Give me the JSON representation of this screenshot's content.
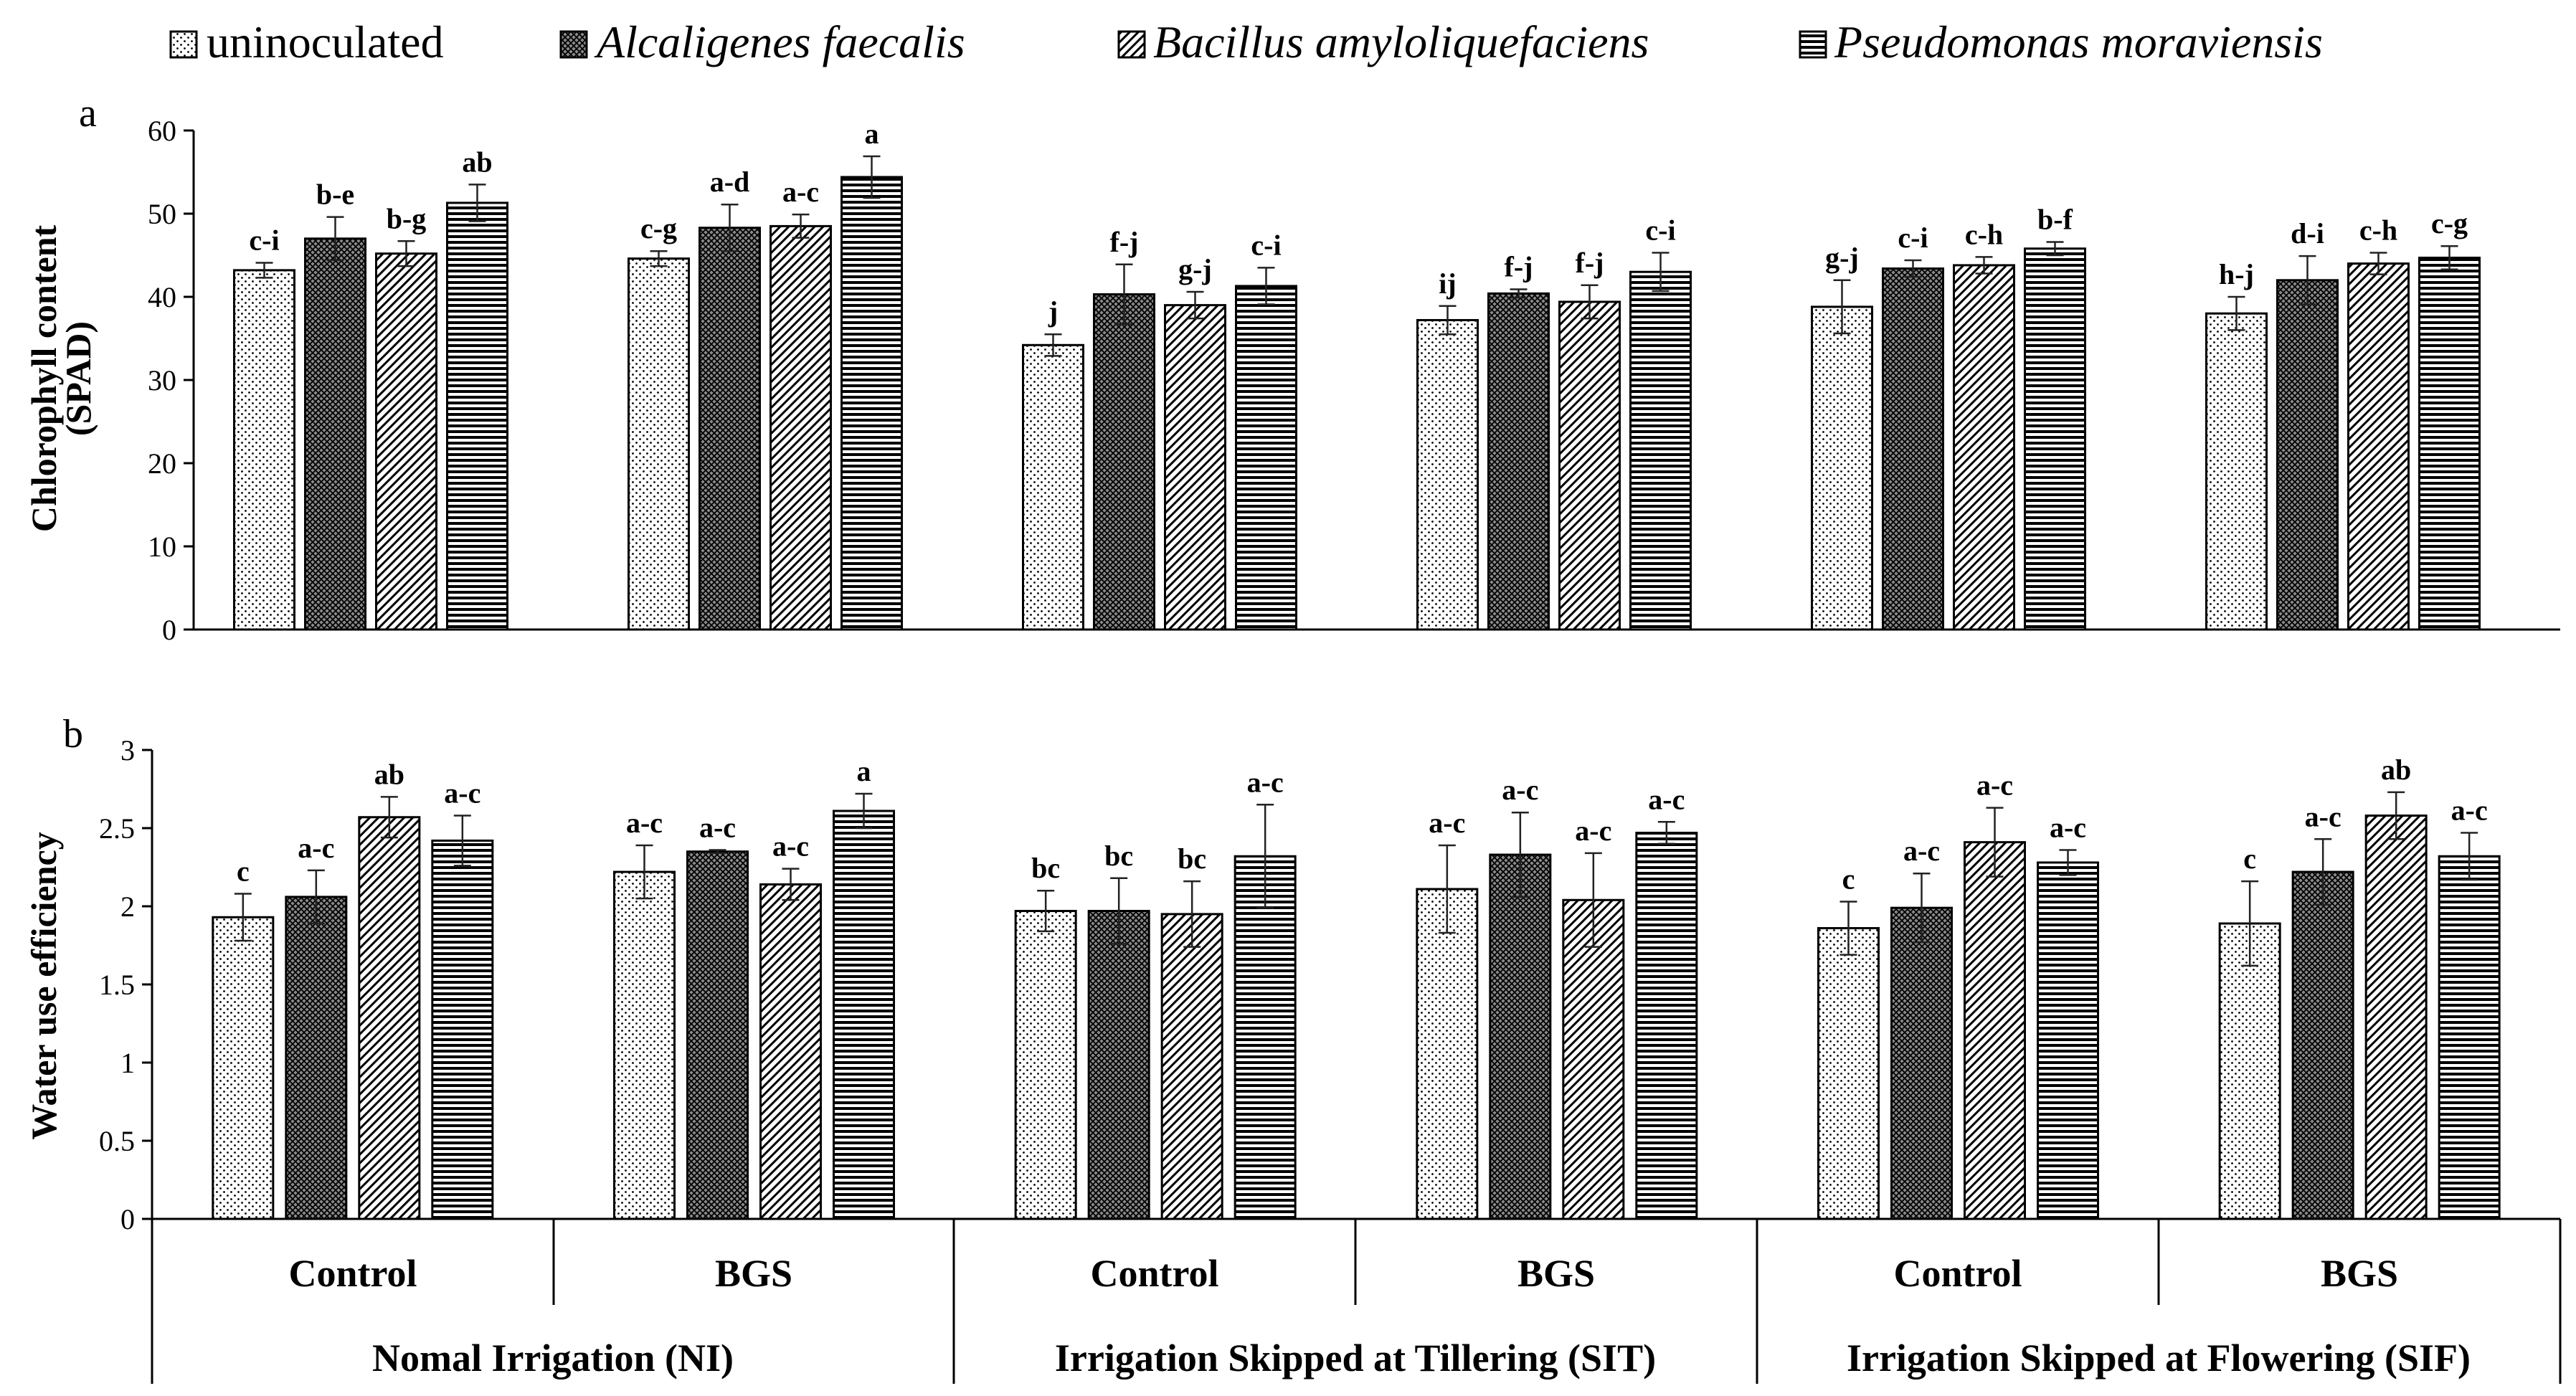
{
  "legend": [
    {
      "label": "uninoculated",
      "italic": false,
      "pattern": "dots"
    },
    {
      "label": "Alcaligenes faecalis",
      "italic": true,
      "pattern": "crosshatch"
    },
    {
      "label": "Bacillus amyloliquefaciens",
      "italic": true,
      "pattern": "diagonal"
    },
    {
      "label": "Pseudomonas moraviensis",
      "italic": true,
      "pattern": "horizontal"
    }
  ],
  "groups": {
    "sub": [
      "Control",
      "BGS",
      "Control",
      "BGS",
      "Control",
      "BGS"
    ],
    "main": [
      "Nomal Irrigation (NI)",
      "Irrigation Skipped at Tillering (SIT)",
      "Irrigation Skipped at Flowering (SIF)"
    ]
  },
  "chart_data": [
    {
      "type": "bar",
      "panel_label": "a",
      "ylabel_line1": "Chlorophyll content",
      "ylabel_line2": "(SPAD)",
      "ylim": [
        0,
        60
      ],
      "yticks": [
        0,
        10,
        20,
        30,
        40,
        50,
        60
      ],
      "categories": [
        "NI Control",
        "NI BGS",
        "SIT Control",
        "SIT BGS",
        "SIF Control",
        "SIF BGS"
      ],
      "series": [
        {
          "name": "uninoculated",
          "values": [
            43.2,
            44.6,
            34.2,
            37.2,
            38.8,
            38.0
          ],
          "errors": [
            0.9,
            0.9,
            1.3,
            1.7,
            3.2,
            2.0
          ],
          "letters": [
            "c-i",
            "c-g",
            "j",
            "ij",
            "g-j",
            "h-j"
          ]
        },
        {
          "name": "Alcaligenes faecalis",
          "values": [
            47.0,
            48.3,
            40.3,
            40.4,
            43.4,
            42.0
          ],
          "errors": [
            2.6,
            2.8,
            3.6,
            0.5,
            1.0,
            2.9
          ],
          "letters": [
            "b-e",
            "a-d",
            "f-j",
            "f-j",
            "c-i",
            "d-i"
          ]
        },
        {
          "name": "Bacillus amyloliquefaciens",
          "values": [
            45.2,
            48.5,
            39.0,
            39.4,
            43.8,
            44.0
          ],
          "errors": [
            1.5,
            1.4,
            1.6,
            2.0,
            1.0,
            1.3
          ],
          "letters": [
            "b-g",
            "a-c",
            "g-j",
            "f-j",
            "c-h",
            "c-h"
          ]
        },
        {
          "name": "Pseudomonas moraviensis",
          "values": [
            51.3,
            54.4,
            41.3,
            43.0,
            45.8,
            44.7
          ],
          "errors": [
            2.2,
            2.5,
            2.2,
            2.3,
            0.8,
            1.4
          ],
          "letters": [
            "ab",
            "a",
            "c-i",
            "c-i",
            "b-f",
            "c-g"
          ]
        }
      ]
    },
    {
      "type": "bar",
      "panel_label": "b",
      "ylabel_line1": "Water use efficiency",
      "ylabel_line2": "",
      "ylim": [
        0,
        3
      ],
      "yticks": [
        0,
        0.5,
        1,
        1.5,
        2,
        2.5,
        3
      ],
      "categories": [
        "NI Control",
        "NI BGS",
        "SIT Control",
        "SIT BGS",
        "SIF Control",
        "SIF BGS"
      ],
      "series": [
        {
          "name": "uninoculated",
          "values": [
            1.93,
            2.22,
            1.97,
            2.11,
            1.86,
            1.89
          ],
          "errors": [
            0.15,
            0.17,
            0.13,
            0.28,
            0.17,
            0.27
          ],
          "letters": [
            "c",
            "a-c",
            "bc",
            "a-c",
            "c",
            "c"
          ]
        },
        {
          "name": "Alcaligenes faecalis",
          "values": [
            2.06,
            2.35,
            1.97,
            2.33,
            1.99,
            2.22
          ],
          "errors": [
            0.17,
            0.01,
            0.21,
            0.27,
            0.22,
            0.21
          ],
          "letters": [
            "a-c",
            "a-c",
            "bc",
            "a-c",
            "a-c",
            "a-c"
          ]
        },
        {
          "name": "Bacillus amyloliquefaciens",
          "values": [
            2.57,
            2.14,
            1.95,
            2.04,
            2.41,
            2.58
          ],
          "errors": [
            0.13,
            0.1,
            0.21,
            0.3,
            0.22,
            0.15
          ],
          "letters": [
            "ab",
            "a-c",
            "bc",
            "a-c",
            "a-c",
            "ab"
          ]
        },
        {
          "name": "Pseudomonas moraviensis",
          "values": [
            2.42,
            2.61,
            2.32,
            2.47,
            2.28,
            2.32
          ],
          "errors": [
            0.16,
            0.11,
            0.33,
            0.07,
            0.08,
            0.15
          ],
          "letters": [
            "a-c",
            "a",
            "a-c",
            "a-c",
            "a-c",
            "a-c"
          ]
        }
      ]
    }
  ]
}
